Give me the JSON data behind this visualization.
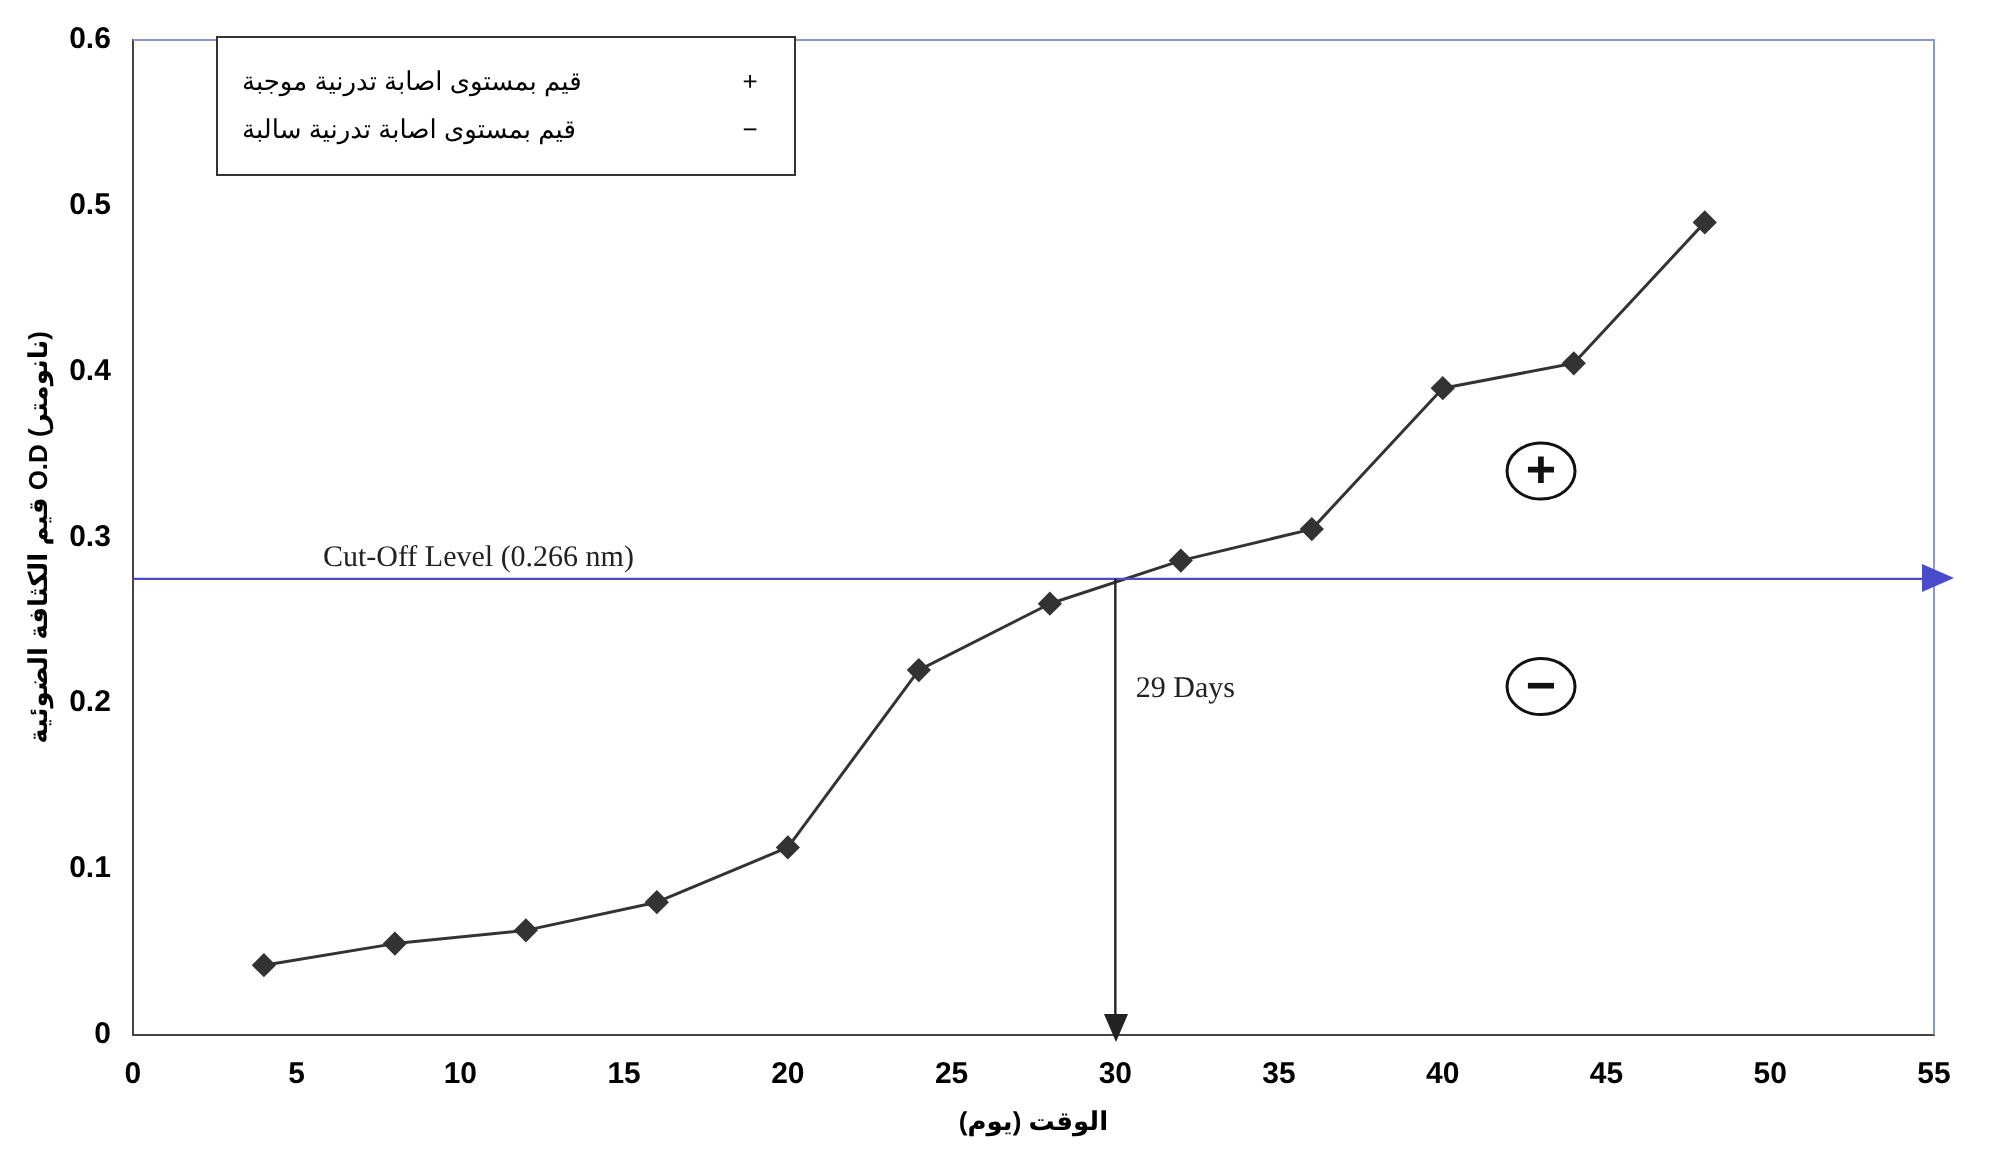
{
  "chart_data": {
    "type": "line",
    "xlabel": "الوقت (يوم)",
    "ylabel": "قيم الكثافة الضوئية O.D (نانومتر)",
    "x": [
      4,
      8,
      12,
      16,
      20,
      24,
      28,
      32,
      36,
      40,
      44,
      48
    ],
    "series": [
      {
        "color": "#333333",
        "values": [
          0.042,
          0.055,
          0.063,
          0.08,
          0.113,
          0.22,
          0.26,
          0.286,
          0.305,
          0.39,
          0.405,
          0.49
        ]
      }
    ],
    "xlim": [
      0,
      55
    ],
    "xticks": [
      0,
      5,
      10,
      15,
      20,
      25,
      30,
      35,
      40,
      45,
      50,
      55
    ],
    "ylim": [
      0,
      0.6
    ],
    "yticks": [
      0,
      0.1,
      0.2,
      0.3,
      0.4,
      0.5,
      0.6
    ],
    "ref_lines": [
      {
        "axis": "y",
        "value": 0.275,
        "label": "Cut-Off Level (0.266 nm)",
        "color": "#4a4acc"
      },
      {
        "axis": "x",
        "value": 30,
        "label": "29 Days",
        "color": "#222222"
      }
    ],
    "annotations": [
      "قيم بمستوى اصابة تدرنية موجبة",
      "قيم بمستوى اصابة تدرنية سالبة",
      {
        "text": "+",
        "x": 43,
        "y": 0.34
      },
      {
        "text": "−",
        "x": 43,
        "y": 0.21
      }
    ],
    "marker": "diamond",
    "grid": false
  }
}
